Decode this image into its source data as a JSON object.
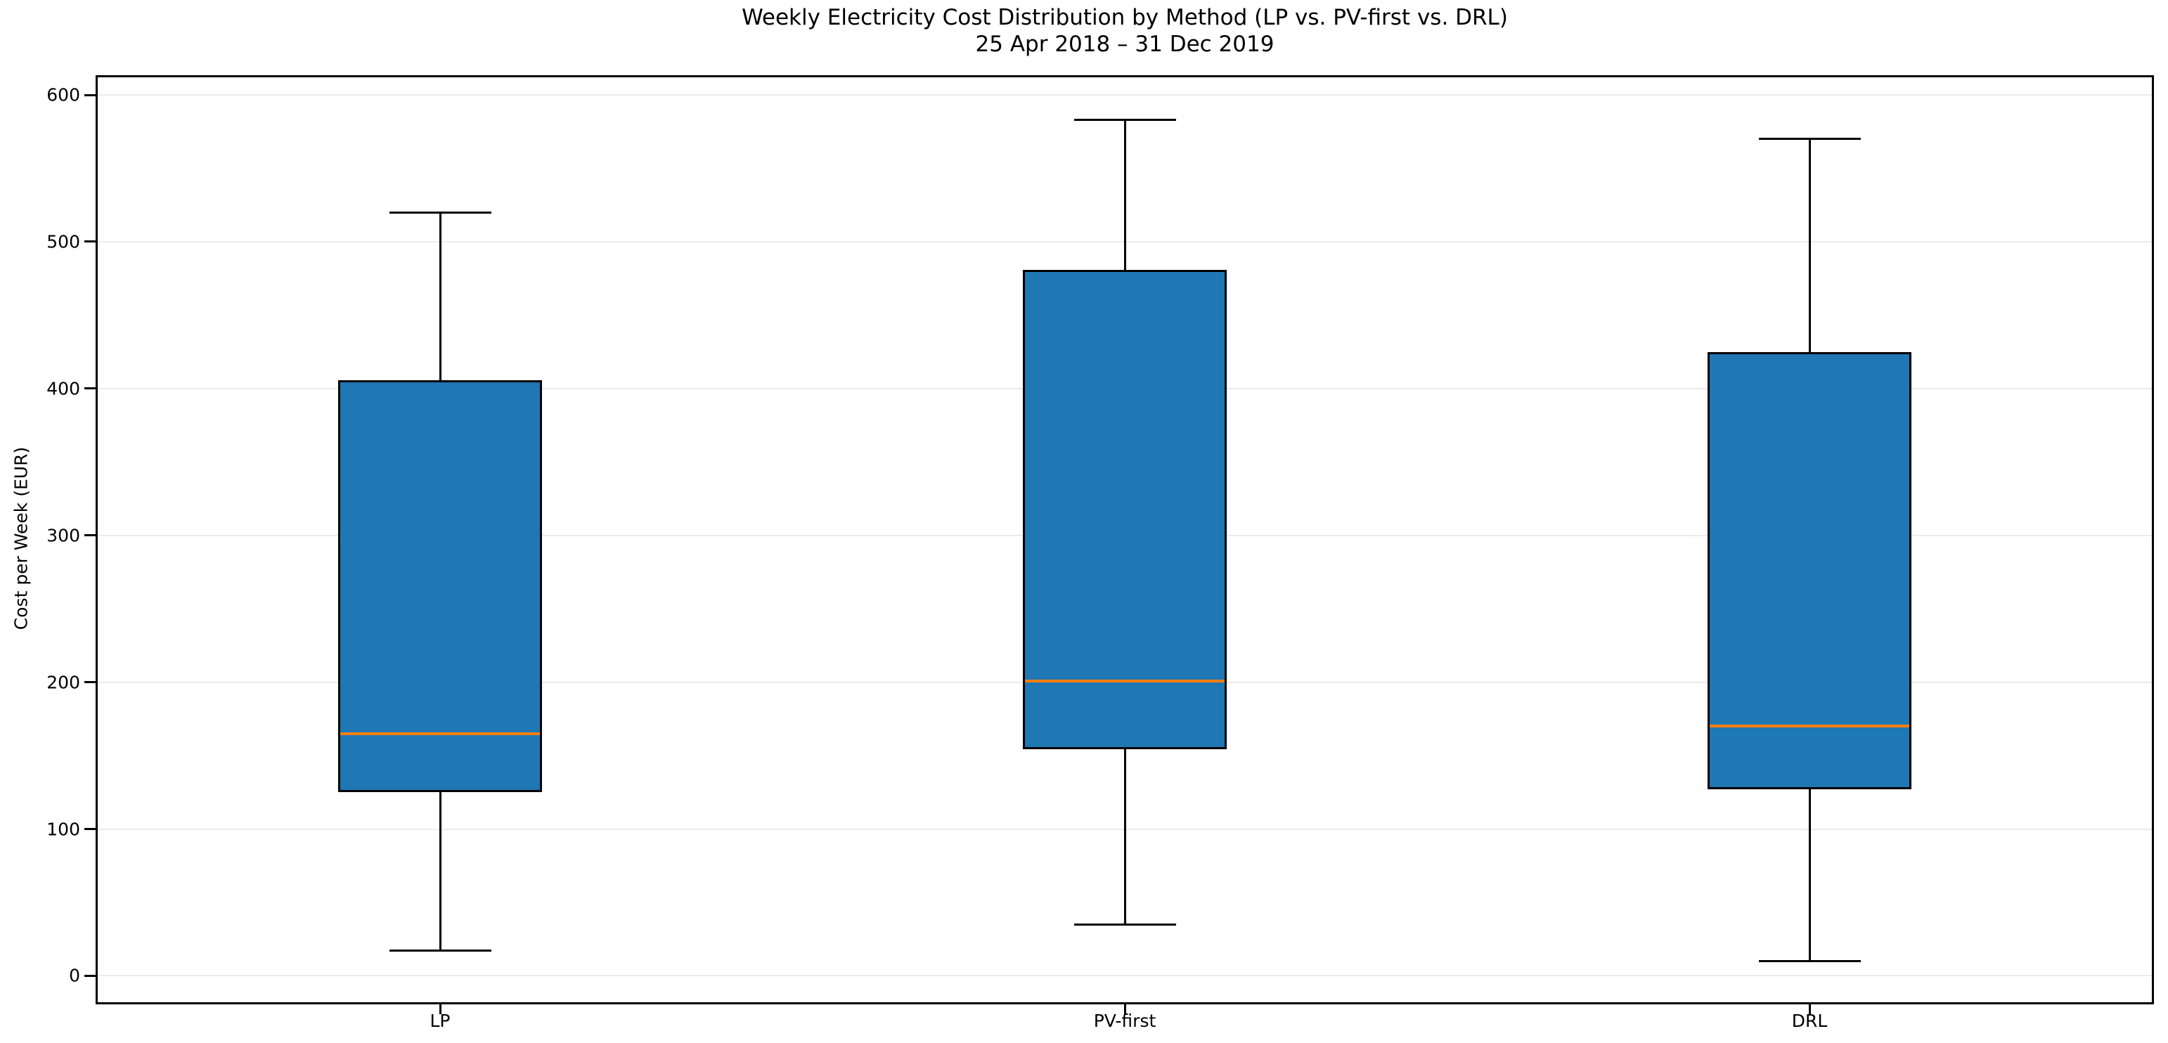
{
  "chart_data": {
    "type": "box",
    "title": "Weekly Electricity Cost Distribution by Method (LP vs. PV-first vs. DRL)",
    "subtitle": "25 Apr 2018 – 31 Dec 2019",
    "ylabel": "Cost per Week (EUR)",
    "categories": [
      "LP",
      "PV-first",
      "DRL"
    ],
    "series": [
      {
        "name": "LP",
        "whisker_low": 17,
        "q1": 126,
        "median": 165,
        "q3": 405,
        "whisker_high": 520
      },
      {
        "name": "PV-first",
        "whisker_low": 35,
        "q1": 155,
        "median": 201,
        "q3": 480,
        "whisker_high": 583
      },
      {
        "name": "DRL",
        "whisker_low": 10,
        "q1": 128,
        "median": 170,
        "q3": 424,
        "whisker_high": 570
      }
    ],
    "yticks": [
      0,
      100,
      200,
      300,
      400,
      500,
      600
    ],
    "ylim": [
      -18,
      612
    ],
    "grid": "horizontal",
    "legend": "none",
    "colors": {
      "box_fill": "#1f77b4",
      "box_edge": "#000000",
      "median": "#ff7f0e",
      "whisker": "#000000",
      "grid": "#ebebeb",
      "spine": "#000000",
      "text": "#000000",
      "background": "#ffffff"
    }
  }
}
